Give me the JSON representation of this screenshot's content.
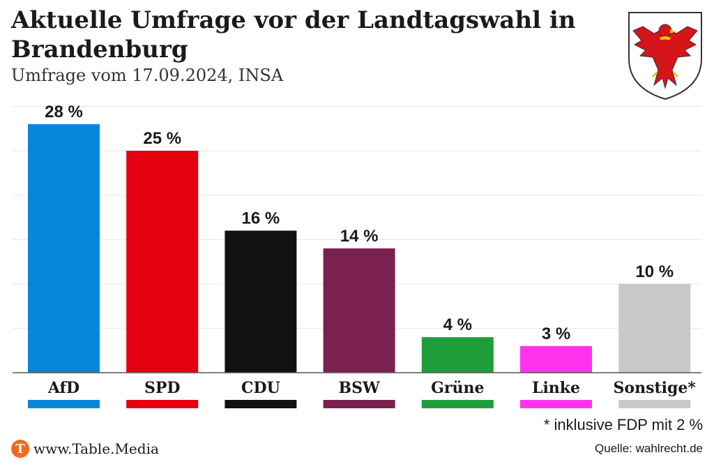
{
  "header": {
    "title": "Aktuelle Umfrage vor der Landtagswahl in Brandenburg",
    "subtitle": "Umfrage vom 17.09.2024, INSA"
  },
  "chart_data": {
    "type": "bar",
    "categories": [
      "AfD",
      "SPD",
      "CDU",
      "BSW",
      "Grüne",
      "Linke",
      "Sonstige*"
    ],
    "values": [
      28,
      25,
      16,
      14,
      4,
      3,
      10
    ],
    "value_labels": [
      "28 %",
      "25 %",
      "16 %",
      "14 %",
      "4 %",
      "3 %",
      "10 %"
    ],
    "colors": [
      "#0787d8",
      "#e3000f",
      "#111111",
      "#7a2150",
      "#1e9e3a",
      "#ff33ee",
      "#c8c8c8"
    ],
    "ylim": [
      0,
      30
    ],
    "grid": true
  },
  "footer": {
    "footnote": "*  inklusive FDP mit 2 %",
    "brand_letter": "T",
    "brand": "www.Table.Media",
    "source": "Quelle: wahlrecht.de"
  }
}
